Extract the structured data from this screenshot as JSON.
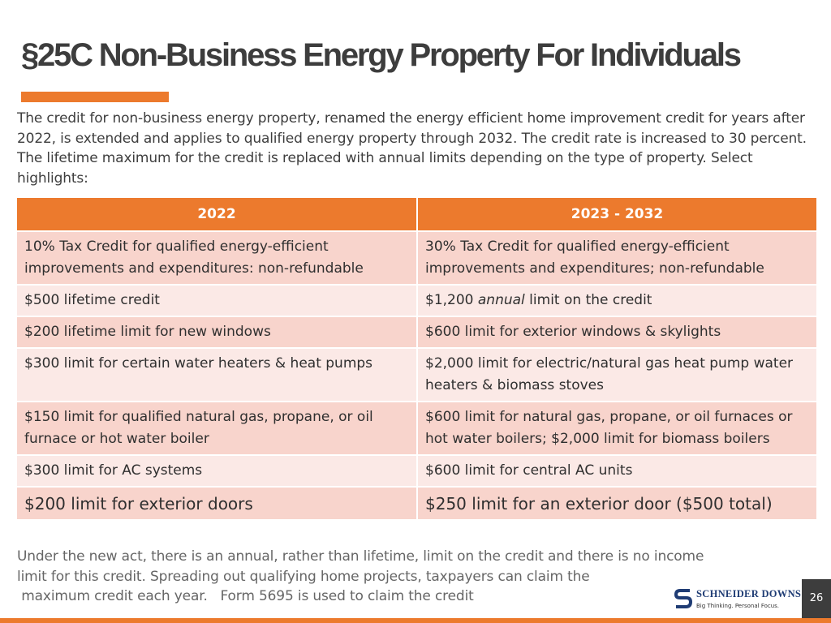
{
  "slide": {
    "title": "§25C Non-Business Energy Property For Individuals",
    "intro": "The credit for non-business energy property, renamed the energy efficient home improvement credit for years after 2022, is extended and applies to qualified energy property through 2032. The credit rate is increased to 30 percent. The lifetime maximum for the credit is replaced with annual limits depending on the type of property.  Select highlights:",
    "footer_line1": "Under the new act, there is an annual, rather than lifetime, limit on the credit and there is no income",
    "footer_line2": "limit for this credit.  Spreading out qualifying home projects, taxpayers can claim the",
    "footer_line3": " maximum credit each year.   Form 5695 is used to claim the credit",
    "page_number": "26"
  },
  "table": {
    "headers": [
      "2022",
      "2023 - 2032"
    ],
    "rows": [
      [
        "10% Tax Credit for qualified energy-efficient improvements and expenditures: non-refundable",
        "30% Tax Credit for qualified energy-efficient improvements and expenditures; non-refundable"
      ],
      [
        "$500 lifetime credit",
        {
          "before": "$1,200 ",
          "italic": "annual",
          "after": " limit on the credit"
        }
      ],
      [
        "$200 lifetime limit for new windows",
        "$600 limit for exterior windows & skylights"
      ],
      [
        "$300 limit for certain water heaters & heat pumps",
        "$2,000 limit for electric/natural gas heat pump water heaters & biomass stoves"
      ],
      [
        "$150 limit for qualified natural gas, propane, or oil furnace or hot water boiler",
        "$600 limit for natural gas, propane, or oil furnaces or hot water boilers; $2,000 limit for biomass boilers"
      ],
      [
        "$300 limit for AC systems",
        "$600 limit for central AC units"
      ],
      [
        "$200 limit for exterior doors",
        "$250 limit for an exterior door ($500 total)"
      ]
    ]
  },
  "logo": {
    "name": "SCHNEIDER DOWNS",
    "tagline": "Big Thinking. Personal Focus."
  },
  "colors": {
    "accent": "#ec7a2d",
    "row_dark": "#f8d4cc",
    "row_light": "#fbe9e6",
    "logo_blue": "#1f3c74",
    "page_box": "#3d3d3d"
  }
}
